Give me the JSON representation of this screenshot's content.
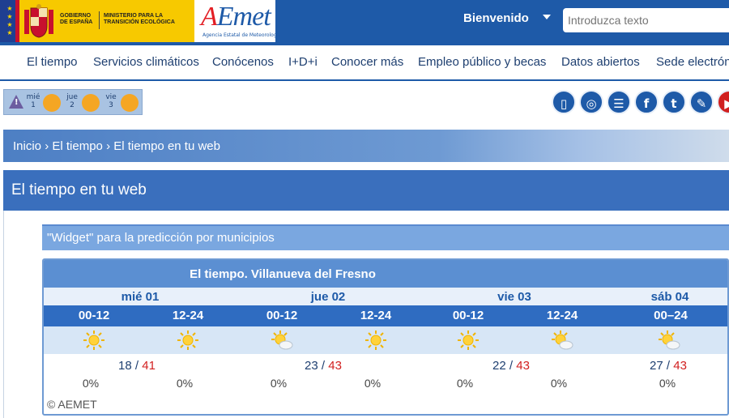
{
  "header": {
    "gov_line1": "Gobierno de España",
    "gov_line2": "Ministerio para la Transición Ecológica",
    "aemet_logo_a": "A",
    "aemet_logo_rest": "Emet",
    "aemet_subtitle": "Agencia Estatal de Meteorología",
    "welcome": "Bienvenido",
    "search_placeholder": "Introduzca texto"
  },
  "nav": {
    "items": [
      "El tiempo",
      "Servicios climáticos",
      "Conócenos",
      "I+D+i",
      "Conocer más",
      "Empleo público y becas",
      "Datos abiertos",
      "Sede electrónica"
    ]
  },
  "warnings": {
    "days": [
      {
        "name": "mié",
        "num": "1"
      },
      {
        "name": "jue",
        "num": "2"
      },
      {
        "name": "vie",
        "num": "3"
      }
    ],
    "level_color": "#f5a623"
  },
  "social": {
    "icons": [
      "mobile-icon",
      "help-icon",
      "list-icon",
      "facebook-icon",
      "twitter-icon",
      "blog-icon",
      "youtube-icon"
    ]
  },
  "breadcrumb": {
    "items": [
      "Inicio",
      "El tiempo",
      "El tiempo en tu web"
    ],
    "separator": "›"
  },
  "page_title": "El tiempo en tu web",
  "widget": {
    "section_title": "\"Widget\" para la predicción por municipios",
    "title": "El tiempo. Villanueva del Fresno",
    "days": [
      {
        "label": "mié 01",
        "min": "18",
        "max": "41"
      },
      {
        "label": "jue 02",
        "min": "23",
        "max": "43"
      },
      {
        "label": "vie 03",
        "min": "22",
        "max": "43"
      },
      {
        "label": "sáb 04",
        "min": "27",
        "max": "43"
      }
    ],
    "periods": [
      {
        "label": "00-12",
        "icon": "sun-icon",
        "rain": "0%"
      },
      {
        "label": "12-24",
        "icon": "sun-icon",
        "rain": "0%"
      },
      {
        "label": "00-12",
        "icon": "sun-cloud-icon",
        "rain": "0%"
      },
      {
        "label": "12-24",
        "icon": "sun-icon",
        "rain": "0%"
      },
      {
        "label": "00-12",
        "icon": "sun-icon",
        "rain": "0%"
      },
      {
        "label": "12-24",
        "icon": "sun-cloud-icon",
        "rain": "0%"
      },
      {
        "label": "00–24",
        "icon": "sun-cloud-icon",
        "rain": "0%"
      }
    ],
    "copyright": "© AEMET"
  },
  "colors": {
    "brand_blue": "#1e5aa8",
    "max_temp_red": "#d21f1f",
    "gov_yellow": "#f7c900"
  }
}
